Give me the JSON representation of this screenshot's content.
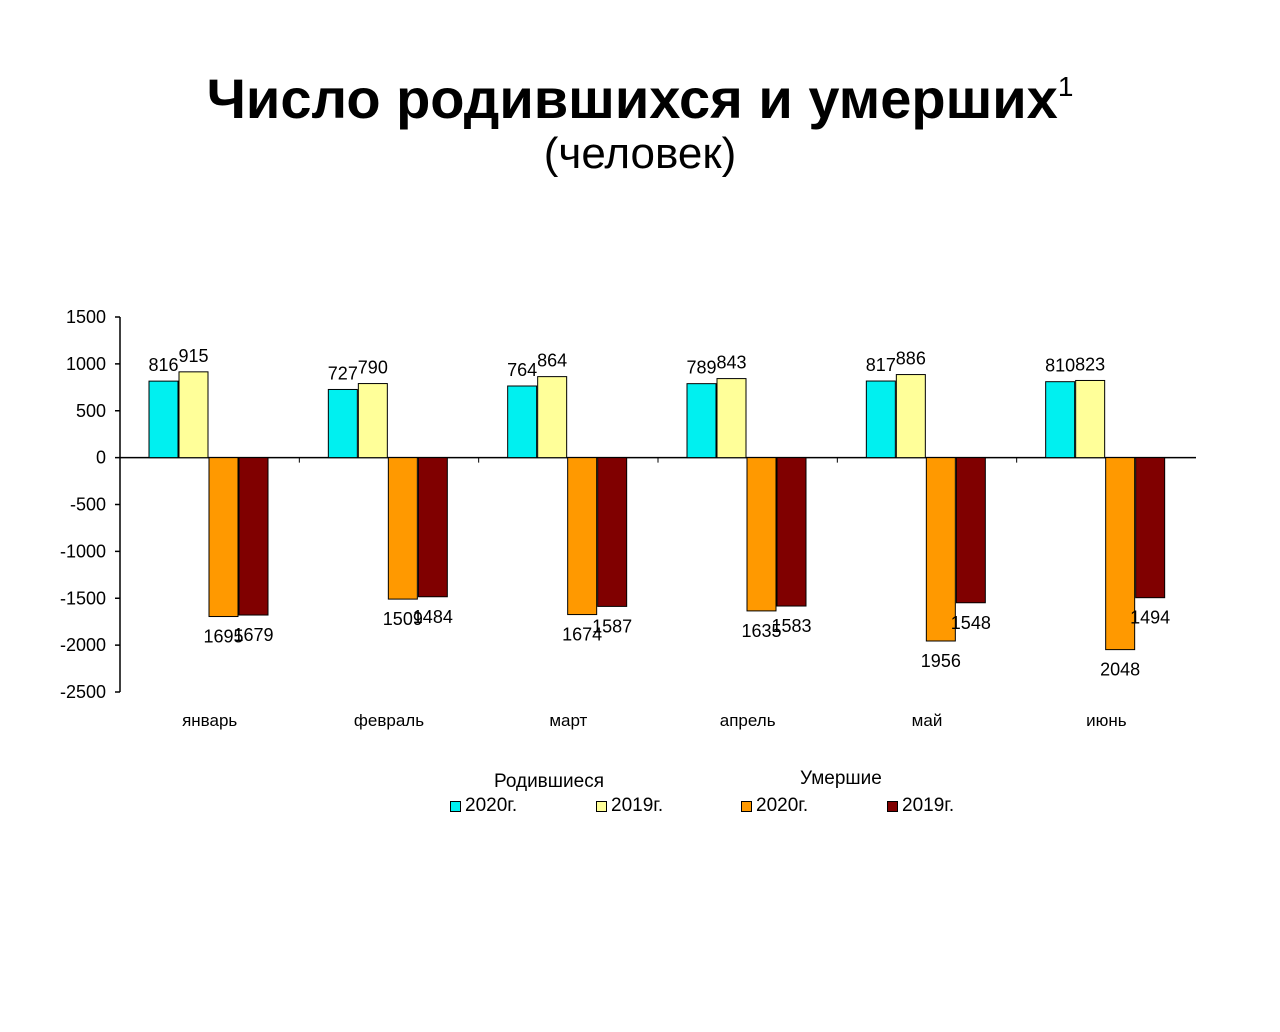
{
  "title": "Число родившихся и умерших",
  "title_superscript": "1",
  "subtitle": "(человек)",
  "chart_data": {
    "type": "bar",
    "categories": [
      "январь",
      "февраль",
      "март",
      "апрель",
      "май",
      "июнь"
    ],
    "ylim": [
      -2500,
      1500
    ],
    "yticks": [
      1500,
      1000,
      500,
      0,
      -500,
      -1000,
      -1500,
      -2000,
      -2500
    ],
    "series": [
      {
        "group": "Родившиеся",
        "name": "2020г.",
        "color": "#00f0f0",
        "values": [
          816,
          727,
          764,
          789,
          817,
          810
        ],
        "labels": [
          "816",
          "727",
          "764",
          "789",
          "817",
          "810"
        ]
      },
      {
        "group": "Родившиеся",
        "name": "2019г.",
        "color": "#ffff99",
        "values": [
          915,
          790,
          864,
          843,
          886,
          823
        ],
        "labels": [
          "915",
          "790",
          "864",
          "843",
          "886",
          "823"
        ]
      },
      {
        "group": "Умершие",
        "name": "2020г.",
        "color": "#ff9900",
        "values": [
          -1695,
          -1509,
          -1674,
          -1635,
          -1956,
          -2048
        ],
        "labels": [
          "1695",
          "1509",
          "1674",
          "1635",
          "1956",
          "2048"
        ]
      },
      {
        "group": "Умершие",
        "name": "2019г.",
        "color": "#800000",
        "values": [
          -1679,
          -1484,
          -1587,
          -1583,
          -1548,
          -1494
        ],
        "labels": [
          "1679",
          "1484",
          "1587",
          "1583",
          "1548",
          "1494"
        ]
      }
    ],
    "legend": {
      "groups": [
        "Родившиеся",
        "Умершие"
      ],
      "placement": "bottom"
    }
  }
}
